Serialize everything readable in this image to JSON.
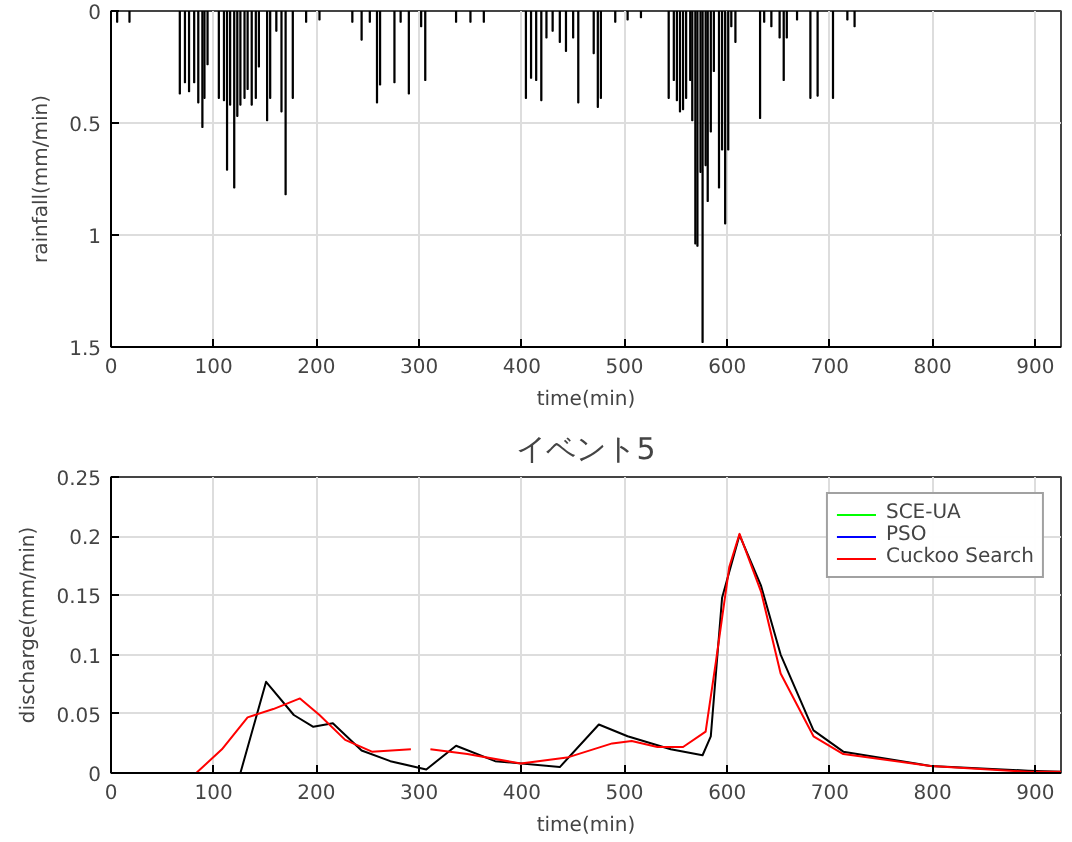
{
  "chart_data": [
    {
      "type": "bar",
      "ylabel": "rainfall(mm/min)",
      "xlabel": "time(min)",
      "xlim": [
        0,
        925
      ],
      "xticks": [
        0,
        100,
        200,
        300,
        400,
        500,
        600,
        700,
        800,
        900
      ],
      "ylim": [
        1.5,
        0
      ],
      "yticks": [
        0,
        0.5,
        1,
        1.5
      ],
      "grid": true,
      "color": "#000000",
      "x": [
        6,
        18,
        67,
        72,
        76,
        81,
        85,
        89,
        91,
        94,
        105,
        110,
        113,
        116,
        120,
        123,
        126,
        130,
        133,
        137,
        141,
        144,
        152,
        155,
        161,
        166,
        170,
        177,
        190,
        203,
        235,
        244,
        252,
        259,
        262,
        276,
        282,
        290,
        302,
        306,
        336,
        350,
        363,
        404,
        409,
        414,
        419,
        424,
        430,
        437,
        443,
        450,
        455,
        470,
        474,
        477,
        491,
        503,
        516,
        543,
        548,
        551,
        554,
        557,
        560,
        564,
        566,
        569,
        571,
        574,
        576,
        579,
        581,
        584,
        587,
        592,
        595,
        598,
        601,
        604,
        608,
        632,
        636,
        643,
        651,
        655,
        658,
        668,
        681,
        688,
        703,
        717,
        724
      ],
      "values": [
        0.05,
        0.05,
        0.37,
        0.32,
        0.36,
        0.32,
        0.41,
        0.52,
        0.39,
        0.24,
        0.39,
        0.4,
        0.71,
        0.42,
        0.79,
        0.47,
        0.42,
        0.39,
        0.35,
        0.42,
        0.39,
        0.25,
        0.49,
        0.39,
        0.09,
        0.45,
        0.82,
        0.39,
        0.05,
        0.04,
        0.05,
        0.13,
        0.05,
        0.41,
        0.33,
        0.32,
        0.05,
        0.37,
        0.07,
        0.31,
        0.05,
        0.05,
        0.05,
        0.39,
        0.3,
        0.31,
        0.4,
        0.12,
        0.09,
        0.14,
        0.18,
        0.12,
        0.41,
        0.19,
        0.43,
        0.39,
        0.05,
        0.04,
        0.03,
        0.39,
        0.31,
        0.4,
        0.45,
        0.44,
        0.39,
        0.31,
        0.49,
        1.04,
        1.05,
        0.72,
        1.48,
        0.69,
        0.85,
        0.54,
        0.27,
        0.79,
        0.62,
        0.95,
        0.62,
        0.07,
        0.14,
        0.48,
        0.05,
        0.07,
        0.12,
        0.31,
        0.12,
        0.04,
        0.39,
        0.38,
        0.39,
        0.04,
        0.07
      ]
    },
    {
      "type": "line",
      "title": "イベント5",
      "ylabel": "discharge(mm/min)",
      "xlabel": "time(min)",
      "xlim": [
        0,
        925
      ],
      "xticks": [
        0,
        100,
        200,
        300,
        400,
        500,
        600,
        700,
        800,
        900
      ],
      "ylim": [
        0,
        0.25
      ],
      "yticks": [
        0,
        0.05,
        0.1,
        0.15,
        0.2,
        0.25
      ],
      "grid": true,
      "legend": "top right",
      "line_style": "solid",
      "marker": "none",
      "series": [
        {
          "color": "#000000",
          "x": [
            0,
            126,
            151,
            178,
            197,
            216,
            244,
            272,
            307,
            336,
            374,
            437,
            475,
            503,
            545,
            576,
            584,
            595,
            612,
            633,
            652,
            684,
            713,
            798,
            893,
            925
          ],
          "values": [
            0,
            0,
            0.077,
            0.049,
            0.039,
            0.042,
            0.019,
            0.01,
            0.003,
            0.023,
            0.01,
            0.005,
            0.041,
            0.031,
            0.02,
            0.015,
            0.031,
            0.148,
            0.201,
            0.158,
            0.1,
            0.036,
            0.018,
            0.006,
            0.002,
            0.001
          ]
        },
        {
          "name": "SCE-UA",
          "color": "#00ff00"
        },
        {
          "name": "PSO",
          "color": "#0000ff"
        },
        {
          "name": "Cuckoo Search",
          "color": "#ff0000",
          "x": [
            0,
            83,
            108,
            133,
            158,
            184,
            203,
            228,
            254,
            292,
            297,
            311,
            347,
            399,
            444,
            488,
            507,
            532,
            557,
            579,
            589,
            602,
            612,
            633,
            652,
            684,
            713,
            798,
            893,
            925
          ],
          "values": [
            0,
            0,
            0.02,
            0.047,
            0.054,
            0.063,
            0.049,
            0.028,
            0.018,
            0.02,
            null,
            0.02,
            0.016,
            0.008,
            0.013,
            0.025,
            0.027,
            0.022,
            0.022,
            0.035,
            0.094,
            0.174,
            0.202,
            0.153,
            0.084,
            0.031,
            0.016,
            0.006,
            0.001,
            0.001
          ]
        }
      ]
    }
  ]
}
